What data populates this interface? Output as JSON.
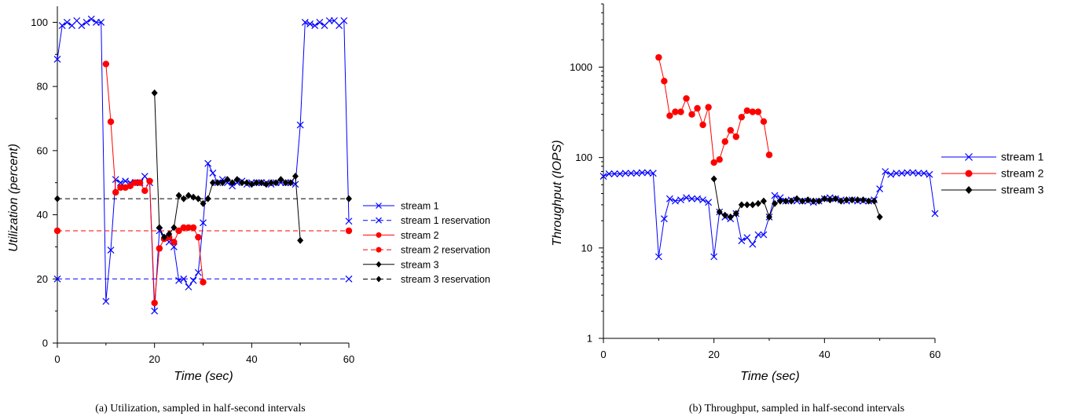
{
  "charts": [
    {
      "caption": "(a)  Utilization, sampled in half-second intervals",
      "chart_data": {
        "type": "line",
        "title": "",
        "xlabel": "Time (sec)",
        "ylabel": "Utilization (percent)",
        "xlim": [
          0,
          60
        ],
        "ylim": [
          0,
          105
        ],
        "xticks": [
          0,
          20,
          40,
          60
        ],
        "yticks": [
          0,
          20,
          40,
          60,
          80,
          100
        ],
        "grid": false,
        "legend_position": "right",
        "series": [
          {
            "name": "stream 1",
            "color": "#0000ff",
            "marker": "x",
            "dash": "solid",
            "points": [
              [
                0,
                88.5
              ],
              [
                1,
                99
              ],
              [
                2,
                100
              ],
              [
                3,
                99
              ],
              [
                4,
                100.5
              ],
              [
                5,
                99
              ],
              [
                6,
                100
              ],
              [
                7,
                101
              ],
              [
                8,
                100
              ],
              [
                9,
                100
              ],
              [
                10,
                13
              ],
              [
                11,
                29
              ],
              [
                12,
                51
              ],
              [
                13,
                50
              ],
              [
                14,
                50.5
              ],
              [
                15,
                50
              ],
              [
                16,
                50
              ],
              [
                17,
                50
              ],
              [
                18,
                52
              ],
              [
                19,
                50
              ],
              [
                20,
                10
              ],
              [
                21,
                35
              ],
              [
                22,
                33
              ],
              [
                23,
                31.5
              ],
              [
                24,
                30
              ],
              [
                25,
                19.5
              ],
              [
                26,
                20
              ],
              [
                27,
                17.5
              ],
              [
                28,
                19.5
              ],
              [
                29,
                22
              ],
              [
                30,
                37.5
              ],
              [
                31,
                56
              ],
              [
                32,
                53
              ],
              [
                33,
                50
              ],
              [
                34,
                51
              ],
              [
                35,
                50
              ],
              [
                36,
                49
              ],
              [
                37,
                50
              ],
              [
                38,
                50.5
              ],
              [
                39,
                49.5
              ],
              [
                40,
                50
              ],
              [
                41,
                50
              ],
              [
                42,
                50
              ],
              [
                43,
                50
              ],
              [
                44,
                49.5
              ],
              [
                45,
                50
              ],
              [
                46,
                50
              ],
              [
                47,
                50
              ],
              [
                48,
                50
              ],
              [
                49,
                49.5
              ],
              [
                50,
                68
              ],
              [
                51,
                100
              ],
              [
                52,
                99.5
              ],
              [
                53,
                99
              ],
              [
                54,
                100
              ],
              [
                55,
                99
              ],
              [
                56,
                100.5
              ],
              [
                57,
                100.5
              ],
              [
                58,
                99
              ],
              [
                59,
                100.5
              ],
              [
                60,
                38
              ]
            ]
          },
          {
            "name": "stream 1 reservation",
            "color": "#0000ff",
            "marker": "x",
            "dash": "dashed",
            "points": [
              [
                0,
                20
              ],
              [
                60,
                20
              ]
            ]
          },
          {
            "name": "stream 2",
            "color": "#ff0000",
            "marker": "circle",
            "dash": "solid",
            "points": [
              [
                10,
                87
              ],
              [
                11,
                69
              ],
              [
                12,
                47
              ],
              [
                13,
                48.5
              ],
              [
                14,
                48.5
              ],
              [
                15,
                49
              ],
              [
                16,
                50
              ],
              [
                17,
                50
              ],
              [
                18,
                47.5
              ],
              [
                19,
                50.5
              ],
              [
                20,
                12.5
              ],
              [
                21,
                29.5
              ],
              [
                22,
                32.5
              ],
              [
                23,
                33
              ],
              [
                24,
                31.5
              ],
              [
                25,
                35
              ],
              [
                26,
                36
              ],
              [
                27,
                36
              ],
              [
                28,
                36
              ],
              [
                29,
                33
              ],
              [
                30,
                19
              ]
            ]
          },
          {
            "name": "stream 2 reservation",
            "color": "#ff0000",
            "marker": "circle",
            "dash": "dashed",
            "points": [
              [
                0,
                35
              ],
              [
                60,
                35
              ]
            ]
          },
          {
            "name": "stream 3",
            "color": "#000000",
            "marker": "diamond",
            "dash": "solid",
            "points": [
              [
                20,
                78
              ],
              [
                21,
                36
              ],
              [
                22,
                33
              ],
              [
                23,
                34
              ],
              [
                24,
                36
              ],
              [
                25,
                46
              ],
              [
                26,
                45
              ],
              [
                27,
                46
              ],
              [
                28,
                45.5
              ],
              [
                29,
                45
              ],
              [
                30,
                43.5
              ],
              [
                31,
                45
              ],
              [
                32,
                50
              ],
              [
                33,
                50
              ],
              [
                34,
                50
              ],
              [
                35,
                51
              ],
              [
                36,
                50
              ],
              [
                37,
                51
              ],
              [
                38,
                50
              ],
              [
                39,
                50
              ],
              [
                40,
                49.5
              ],
              [
                41,
                50
              ],
              [
                42,
                50
              ],
              [
                43,
                49.5
              ],
              [
                44,
                50
              ],
              [
                45,
                50
              ],
              [
                46,
                51
              ],
              [
                47,
                50
              ],
              [
                48,
                50
              ],
              [
                49,
                52
              ],
              [
                50,
                32
              ]
            ]
          },
          {
            "name": "stream 3 reservation",
            "color": "#000000",
            "marker": "diamond",
            "dash": "dashed",
            "points": [
              [
                0,
                45
              ],
              [
                60,
                45
              ]
            ]
          }
        ]
      }
    },
    {
      "caption": "(b)  Throughput, sampled in half-second intervals",
      "chart_data": {
        "type": "line",
        "title": "",
        "xlabel": "Time (sec)",
        "ylabel": "Throughput (IOPS)",
        "xlim": [
          0,
          60
        ],
        "ylim": [
          1,
          5000
        ],
        "yscale": "log",
        "xticks": [
          0,
          20,
          40,
          60
        ],
        "yticks": [
          1,
          10,
          100,
          1000
        ],
        "grid": false,
        "legend_position": "right",
        "series": [
          {
            "name": "stream 1",
            "color": "#0000ff",
            "marker": "x",
            "dash": "solid",
            "points": [
              [
                0,
                62
              ],
              [
                1,
                66
              ],
              [
                2,
                66
              ],
              [
                3,
                66
              ],
              [
                4,
                67
              ],
              [
                5,
                67
              ],
              [
                6,
                67
              ],
              [
                7,
                68
              ],
              [
                8,
                68
              ],
              [
                9,
                67
              ],
              [
                10,
                8
              ],
              [
                11,
                21
              ],
              [
                12,
                35
              ],
              [
                13,
                33
              ],
              [
                14,
                34
              ],
              [
                15,
                36
              ],
              [
                16,
                35
              ],
              [
                17,
                35
              ],
              [
                18,
                34
              ],
              [
                19,
                32
              ],
              [
                20,
                8
              ],
              [
                21,
                25
              ],
              [
                22,
                22
              ],
              [
                23,
                21
              ],
              [
                24,
                24
              ],
              [
                25,
                12
              ],
              [
                26,
                13
              ],
              [
                27,
                11
              ],
              [
                28,
                14
              ],
              [
                29,
                14
              ],
              [
                30,
                22
              ],
              [
                31,
                38
              ],
              [
                32,
                36
              ],
              [
                33,
                33
              ],
              [
                34,
                34
              ],
              [
                35,
                33
              ],
              [
                36,
                33
              ],
              [
                37,
                33
              ],
              [
                38,
                32
              ],
              [
                39,
                33
              ],
              [
                40,
                35
              ],
              [
                41,
                36
              ],
              [
                42,
                35
              ],
              [
                43,
                34
              ],
              [
                44,
                33
              ],
              [
                45,
                34
              ],
              [
                46,
                33
              ],
              [
                47,
                33
              ],
              [
                48,
                33
              ],
              [
                49,
                34
              ],
              [
                50,
                45
              ],
              [
                51,
                70
              ],
              [
                52,
                65
              ],
              [
                53,
                67
              ],
              [
                54,
                67
              ],
              [
                55,
                68
              ],
              [
                56,
                68
              ],
              [
                57,
                67
              ],
              [
                58,
                67
              ],
              [
                59,
                65
              ],
              [
                60,
                24
              ]
            ]
          },
          {
            "name": "stream 2",
            "color": "#ff0000",
            "marker": "circle",
            "dash": "solid",
            "points": [
              [
                10,
                1280
              ],
              [
                11,
                700
              ],
              [
                12,
                290
              ],
              [
                13,
                320
              ],
              [
                14,
                320
              ],
              [
                15,
                450
              ],
              [
                16,
                300
              ],
              [
                17,
                350
              ],
              [
                18,
                230
              ],
              [
                19,
                360
              ],
              [
                20,
                88
              ],
              [
                21,
                95
              ],
              [
                22,
                150
              ],
              [
                23,
                200
              ],
              [
                24,
                170
              ],
              [
                25,
                280
              ],
              [
                26,
                330
              ],
              [
                27,
                320
              ],
              [
                28,
                320
              ],
              [
                29,
                250
              ],
              [
                30,
                107
              ]
            ]
          },
          {
            "name": "stream 3",
            "color": "#000000",
            "marker": "diamond",
            "dash": "solid",
            "points": [
              [
                20,
                58
              ],
              [
                21,
                25
              ],
              [
                22,
                23
              ],
              [
                23,
                22
              ],
              [
                24,
                24
              ],
              [
                25,
                30
              ],
              [
                26,
                30
              ],
              [
                27,
                30
              ],
              [
                28,
                31
              ],
              [
                29,
                33
              ],
              [
                30,
                22
              ],
              [
                31,
                31
              ],
              [
                32,
                33
              ],
              [
                33,
                33
              ],
              [
                34,
                33
              ],
              [
                35,
                35
              ],
              [
                36,
                33
              ],
              [
                37,
                34
              ],
              [
                38,
                33
              ],
              [
                39,
                33
              ],
              [
                40,
                35
              ],
              [
                41,
                34
              ],
              [
                42,
                35
              ],
              [
                43,
                33
              ],
              [
                44,
                34
              ],
              [
                45,
                34
              ],
              [
                46,
                34
              ],
              [
                47,
                34
              ],
              [
                48,
                33
              ],
              [
                49,
                33
              ],
              [
                50,
                22
              ]
            ]
          }
        ]
      }
    }
  ]
}
